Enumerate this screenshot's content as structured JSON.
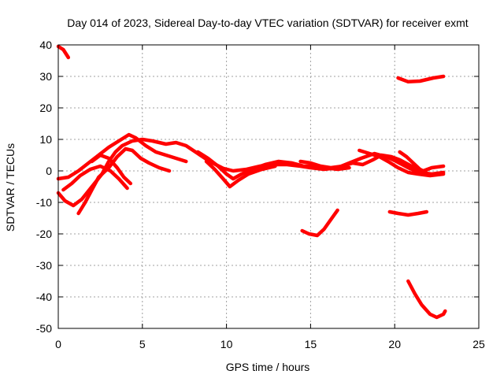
{
  "chart_data": {
    "type": "line",
    "title": "Day 014 of 2023, Sidereal Day-to-day VTEC variation (SDTVAR) for receiver exmt",
    "xlabel": "GPS time / hours",
    "ylabel": "SDTVAR / TECUs",
    "xlim": [
      0,
      25
    ],
    "ylim": [
      -50,
      40
    ],
    "xticks": [
      "0",
      "5",
      "10",
      "15",
      "20",
      "25"
    ],
    "yticks": [
      "40",
      "30",
      "20",
      "10",
      "0",
      "-10",
      "-20",
      "-30",
      "-40",
      "-50"
    ],
    "grid": true,
    "color": "#ff0000",
    "series": [
      {
        "name": "s1",
        "points": [
          [
            0.0,
            39.5
          ],
          [
            0.3,
            38.5
          ],
          [
            0.6,
            36.0
          ]
        ]
      },
      {
        "name": "s2",
        "points": [
          [
            20.2,
            29.5
          ],
          [
            20.8,
            28.3
          ],
          [
            21.5,
            28.5
          ],
          [
            22.3,
            29.5
          ],
          [
            22.9,
            30.0
          ]
        ]
      },
      {
        "name": "s3",
        "points": [
          [
            0.0,
            -7.0
          ],
          [
            0.4,
            -9.5
          ],
          [
            0.9,
            -11.0
          ],
          [
            1.4,
            -9.0
          ],
          [
            2.0,
            -5.0
          ],
          [
            2.6,
            -1.0
          ],
          [
            3.0,
            3.0
          ],
          [
            3.4,
            6.0
          ],
          [
            3.8,
            8.0
          ],
          [
            4.4,
            9.5
          ],
          [
            5.0,
            10.0
          ],
          [
            5.6,
            9.5
          ],
          [
            6.4,
            8.5
          ],
          [
            7.0,
            9.0
          ],
          [
            7.6,
            8.0
          ],
          [
            8.3,
            5.5
          ],
          [
            9.0,
            3.0
          ],
          [
            9.8,
            0.8
          ],
          [
            10.4,
            0.0
          ],
          [
            11.2,
            0.5
          ],
          [
            12.0,
            1.5
          ],
          [
            12.8,
            2.0
          ],
          [
            13.6,
            2.0
          ],
          [
            14.4,
            1.5
          ],
          [
            15.0,
            1.0
          ],
          [
            15.8,
            0.5
          ],
          [
            16.6,
            1.0
          ],
          [
            17.3,
            2.5
          ],
          [
            18.0,
            4.0
          ],
          [
            18.8,
            5.5
          ],
          [
            19.5,
            4.5
          ],
          [
            20.1,
            3.0
          ],
          [
            20.8,
            1.0
          ],
          [
            21.5,
            -0.5
          ],
          [
            22.2,
            -1.0
          ],
          [
            22.9,
            -0.5
          ]
        ]
      },
      {
        "name": "s4",
        "points": [
          [
            0.0,
            -2.5
          ],
          [
            0.6,
            -2.0
          ],
          [
            1.2,
            0.0
          ],
          [
            1.8,
            2.5
          ],
          [
            2.4,
            5.0
          ],
          [
            3.0,
            7.5
          ],
          [
            3.6,
            9.5
          ],
          [
            4.2,
            11.5
          ],
          [
            4.6,
            10.5
          ],
          [
            5.2,
            8.0
          ],
          [
            5.8,
            6.0
          ],
          [
            6.4,
            5.0
          ],
          [
            7.0,
            4.0
          ],
          [
            7.6,
            3.0
          ]
        ]
      },
      {
        "name": "s5",
        "points": [
          [
            1.2,
            -13.5
          ],
          [
            1.6,
            -10.0
          ],
          [
            2.0,
            -6.0
          ],
          [
            2.4,
            -2.0
          ],
          [
            3.0,
            1.0
          ],
          [
            3.5,
            4.5
          ],
          [
            4.0,
            7.0
          ],
          [
            4.4,
            6.5
          ],
          [
            4.9,
            4.0
          ],
          [
            5.4,
            2.5
          ],
          [
            6.0,
            1.0
          ],
          [
            6.6,
            0.0
          ]
        ]
      },
      {
        "name": "s6",
        "points": [
          [
            0.3,
            -6.0
          ],
          [
            0.8,
            -4.0
          ],
          [
            1.3,
            -1.5
          ],
          [
            1.9,
            0.5
          ],
          [
            2.5,
            1.5
          ],
          [
            3.1,
            0.0
          ],
          [
            3.6,
            -2.5
          ],
          [
            4.1,
            -5.5
          ]
        ]
      },
      {
        "name": "s7",
        "points": [
          [
            2.0,
            3.0
          ],
          [
            2.5,
            5.0
          ],
          [
            3.0,
            4.0
          ],
          [
            3.5,
            1.0
          ],
          [
            3.9,
            -2.0
          ],
          [
            4.3,
            -4.0
          ]
        ]
      },
      {
        "name": "s8",
        "points": [
          [
            8.3,
            6.0
          ],
          [
            8.9,
            4.0
          ],
          [
            9.5,
            1.5
          ],
          [
            10.0,
            -1.0
          ],
          [
            10.4,
            -2.5
          ],
          [
            10.9,
            -1.0
          ],
          [
            11.5,
            0.5
          ],
          [
            12.3,
            2.0
          ],
          [
            13.1,
            3.0
          ],
          [
            13.9,
            2.5
          ],
          [
            14.6,
            1.5
          ],
          [
            15.2,
            1.5
          ],
          [
            15.9,
            1.0
          ],
          [
            16.6,
            0.5
          ],
          [
            17.3,
            1.0
          ]
        ]
      },
      {
        "name": "s9",
        "points": [
          [
            8.8,
            3.0
          ],
          [
            9.3,
            0.5
          ],
          [
            9.8,
            -2.5
          ],
          [
            10.2,
            -5.0
          ],
          [
            10.7,
            -3.0
          ],
          [
            11.3,
            -1.0
          ],
          [
            12.1,
            0.5
          ],
          [
            12.9,
            1.5
          ]
        ]
      },
      {
        "name": "s10",
        "points": [
          [
            14.4,
            3.0
          ],
          [
            15.0,
            2.5
          ],
          [
            15.6,
            1.5
          ],
          [
            16.2,
            1.0
          ],
          [
            16.9,
            1.5
          ],
          [
            17.5,
            2.5
          ],
          [
            18.1,
            2.0
          ],
          [
            18.7,
            3.5
          ],
          [
            19.2,
            5.0
          ],
          [
            19.8,
            4.5
          ],
          [
            20.3,
            3.5
          ],
          [
            21.0,
            1.5
          ],
          [
            21.7,
            0.0
          ],
          [
            22.2,
            1.0
          ],
          [
            22.9,
            1.5
          ]
        ]
      },
      {
        "name": "s11",
        "points": [
          [
            17.9,
            6.5
          ],
          [
            18.5,
            5.5
          ],
          [
            19.1,
            4.5
          ],
          [
            19.6,
            3.0
          ],
          [
            20.2,
            1.0
          ],
          [
            20.8,
            -0.5
          ],
          [
            21.4,
            -1.0
          ],
          [
            22.1,
            -1.5
          ],
          [
            22.9,
            -1.0
          ]
        ]
      },
      {
        "name": "s12",
        "points": [
          [
            20.3,
            6.0
          ],
          [
            20.7,
            4.5
          ],
          [
            21.1,
            2.5
          ],
          [
            21.5,
            0.5
          ],
          [
            22.0,
            -1.0
          ]
        ]
      },
      {
        "name": "s13",
        "points": [
          [
            14.5,
            -19.0
          ],
          [
            14.9,
            -20.0
          ],
          [
            15.4,
            -20.5
          ],
          [
            15.8,
            -18.5
          ],
          [
            16.2,
            -15.5
          ],
          [
            16.6,
            -12.5
          ]
        ]
      },
      {
        "name": "s14",
        "points": [
          [
            19.7,
            -13.0
          ],
          [
            20.2,
            -13.5
          ],
          [
            20.8,
            -14.0
          ],
          [
            21.4,
            -13.5
          ],
          [
            21.9,
            -13.0
          ]
        ]
      },
      {
        "name": "s15",
        "points": [
          [
            20.8,
            -35.0
          ],
          [
            21.2,
            -39.0
          ],
          [
            21.6,
            -42.5
          ],
          [
            22.1,
            -45.5
          ],
          [
            22.5,
            -46.5
          ],
          [
            22.9,
            -45.5
          ],
          [
            23.0,
            -44.5
          ]
        ]
      }
    ]
  }
}
